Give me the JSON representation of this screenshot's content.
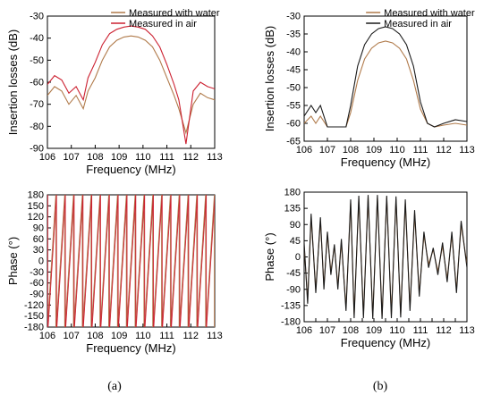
{
  "colors": {
    "water": "#b07a4a",
    "air_a": "#cc2030",
    "air_b": "#1a1a1a",
    "axis": "#000000"
  },
  "captions": [
    "(a)",
    "(b)"
  ],
  "chart_data": [
    {
      "id": "a-top",
      "type": "line",
      "xlabel": "Frequency (MHz)",
      "ylabel": "Insertion losses (dB)",
      "xlim": [
        106,
        113
      ],
      "ylim": [
        -90,
        -30
      ],
      "xticks": [
        "106",
        "107",
        "108",
        "109",
        "110",
        "111",
        "112",
        "113"
      ],
      "yticks": [
        "-30",
        "-40",
        "-50",
        "-60",
        "-70",
        "-80",
        "-90"
      ],
      "legend": "top-right",
      "grid": false,
      "series": [
        {
          "name": "Measured with water",
          "color": "#b07a4a",
          "x": [
            106.0,
            106.3,
            106.6,
            106.9,
            107.2,
            107.5,
            107.7,
            108.0,
            108.3,
            108.6,
            108.9,
            109.2,
            109.5,
            109.8,
            110.1,
            110.4,
            110.7,
            111.0,
            111.3,
            111.5,
            111.8,
            112.1,
            112.4,
            112.7,
            113.0
          ],
          "y": [
            -66,
            -62,
            -64,
            -70,
            -66,
            -72,
            -64,
            -58,
            -50,
            -44,
            -41,
            -39.5,
            -39,
            -39.5,
            -41,
            -44,
            -50,
            -58,
            -66,
            -72,
            -83,
            -70,
            -65,
            -67,
            -68
          ]
        },
        {
          "name": "Measured in air",
          "color": "#cc2030",
          "x": [
            106.0,
            106.3,
            106.6,
            106.9,
            107.2,
            107.5,
            107.7,
            108.0,
            108.3,
            108.6,
            108.9,
            109.2,
            109.5,
            109.8,
            110.1,
            110.4,
            110.7,
            111.0,
            111.3,
            111.5,
            111.8,
            112.1,
            112.4,
            112.7,
            113.0
          ],
          "y": [
            -61,
            -57,
            -59,
            -65,
            -62,
            -68,
            -58,
            -51,
            -43,
            -38,
            -36,
            -35,
            -34.5,
            -35,
            -36,
            -39,
            -44,
            -52,
            -61,
            -68,
            -88,
            -64,
            -60,
            -62,
            -63
          ]
        }
      ]
    },
    {
      "id": "a-bottom",
      "type": "line",
      "xlabel": "Frequency (MHz)",
      "ylabel": "Phase (°)",
      "xlim": [
        106,
        113
      ],
      "ylim": [
        -180,
        180
      ],
      "xticks": [
        "106",
        "107",
        "108",
        "109",
        "110",
        "111",
        "112",
        "113"
      ],
      "yticks": [
        "180",
        "150",
        "120",
        "90",
        "60",
        "30",
        "0",
        "-30",
        "-60",
        "-90",
        "-120",
        "-150",
        "-180"
      ],
      "grid": false,
      "series": [
        {
          "name": "Measured with water",
          "color": "#b07a4a",
          "pattern": "sawtooth",
          "cycles": 19
        },
        {
          "name": "Measured in air",
          "color": "#cc2030",
          "pattern": "sawtooth",
          "cycles": 19
        }
      ]
    },
    {
      "id": "b-top",
      "type": "line",
      "xlabel": "Frequency (MHz)",
      "ylabel": "Insertion losses (dB)",
      "xlim": [
        106,
        113
      ],
      "ylim": [
        -65,
        -30
      ],
      "xticks": [
        "106",
        "107",
        "108",
        "109",
        "110",
        "111",
        "112",
        "113"
      ],
      "yticks": [
        "-30",
        "-35",
        "-40",
        "-45",
        "-50",
        "-55",
        "-60",
        "-65"
      ],
      "legend": "top-right",
      "grid": false,
      "series": [
        {
          "name": "Measured with water",
          "color": "#b07a4a",
          "x": [
            106.0,
            106.3,
            106.5,
            106.7,
            107.0,
            107.5,
            107.8,
            108.0,
            108.3,
            108.6,
            108.9,
            109.2,
            109.5,
            109.8,
            110.1,
            110.4,
            110.7,
            111.0,
            111.3,
            111.6,
            112.0,
            112.5,
            113.0
          ],
          "y": [
            -60,
            -58,
            -60,
            -58,
            -61,
            -61,
            -61,
            -57,
            -48,
            -42,
            -39,
            -37.5,
            -37,
            -37.5,
            -39,
            -42,
            -48,
            -56,
            -60,
            -61,
            -60.5,
            -60,
            -60.5
          ]
        },
        {
          "name": "Measured in air",
          "color": "#1a1a1a",
          "x": [
            106.0,
            106.3,
            106.5,
            106.7,
            107.0,
            107.5,
            107.8,
            108.0,
            108.3,
            108.6,
            108.9,
            109.2,
            109.5,
            109.8,
            110.1,
            110.4,
            110.7,
            111.0,
            111.3,
            111.6,
            112.0,
            112.5,
            113.0
          ],
          "y": [
            -58,
            -55,
            -57,
            -55,
            -61,
            -61,
            -61,
            -55,
            -44,
            -38,
            -35,
            -33.5,
            -33,
            -33.5,
            -35,
            -38,
            -44,
            -54,
            -60,
            -61,
            -60,
            -59,
            -59.5
          ]
        }
      ]
    },
    {
      "id": "b-bottom",
      "type": "line",
      "xlabel": "Frequency (MHz)",
      "ylabel": "Phase (°)",
      "xlim": [
        106,
        113
      ],
      "ylim": [
        -180,
        180
      ],
      "xticks": [
        "106",
        "106.5",
        "107",
        "107.5",
        "108",
        "108.5",
        "109",
        "109.5",
        "110",
        "110.5",
        "111",
        "111.5",
        "112",
        "112.5",
        "113"
      ],
      "xticks_labeled": [
        "106",
        "107",
        "108",
        "109",
        "110",
        "111",
        "112",
        "113"
      ],
      "yticks": [
        "180",
        "135",
        "90",
        "45",
        "0",
        "-45",
        "-90",
        "-135",
        "-180"
      ],
      "grid": false,
      "series": [
        {
          "name": "Measured with water",
          "color": "#b07a4a",
          "x": [
            106.0,
            106.15,
            106.3,
            106.5,
            106.7,
            106.85,
            107.0,
            107.15,
            107.3,
            107.45,
            107.6,
            107.8,
            108.0,
            108.15,
            108.35,
            108.55,
            108.75,
            108.95,
            109.15,
            109.35,
            109.55,
            109.75,
            109.95,
            110.15,
            110.35,
            110.55,
            110.75,
            110.95,
            111.15,
            111.35,
            111.55,
            111.75,
            111.95,
            112.15,
            112.35,
            112.55,
            112.75,
            113.0
          ],
          "y": [
            30,
            -120,
            110,
            -90,
            100,
            -80,
            60,
            -40,
            30,
            -80,
            40,
            -140,
            150,
            -160,
            160,
            -160,
            165,
            -165,
            165,
            -165,
            165,
            -160,
            160,
            -160,
            150,
            -140,
            120,
            -100,
            60,
            -20,
            20,
            -40,
            30,
            -60,
            60,
            -90,
            90,
            -20
          ]
        },
        {
          "name": "Measured in air",
          "color": "#1a1a1a",
          "x": [
            106.0,
            106.15,
            106.3,
            106.5,
            106.7,
            106.85,
            107.0,
            107.15,
            107.3,
            107.45,
            107.6,
            107.8,
            108.0,
            108.15,
            108.35,
            108.55,
            108.75,
            108.95,
            109.15,
            109.35,
            109.55,
            109.75,
            109.95,
            110.15,
            110.35,
            110.55,
            110.75,
            110.95,
            111.15,
            111.35,
            111.55,
            111.75,
            111.95,
            112.15,
            112.35,
            112.55,
            112.75,
            113.0
          ],
          "y": [
            40,
            -130,
            120,
            -100,
            110,
            -90,
            70,
            -50,
            35,
            -90,
            50,
            -150,
            160,
            -170,
            170,
            -170,
            172,
            -172,
            172,
            -172,
            170,
            -170,
            168,
            -168,
            160,
            -150,
            130,
            -110,
            70,
            -30,
            25,
            -50,
            40,
            -70,
            70,
            -100,
            100,
            -30
          ]
        }
      ]
    }
  ]
}
